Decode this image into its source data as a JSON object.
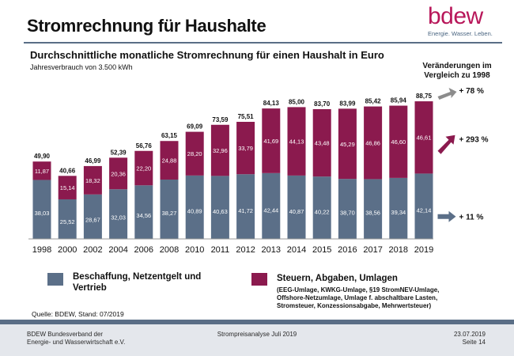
{
  "header": {
    "title": "Stromrechnung für Haushalte",
    "logo_word": "bdew",
    "logo_tagline": "Energie. Wasser. Leben."
  },
  "chart_data": {
    "type": "bar",
    "stacked": true,
    "title": "Durchschnittliche monatliche Stromrechnung für einen Haushalt in Euro",
    "subtitle": "Jahresverbrauch von 3.500 kWh",
    "categories": [
      "1998",
      "2000",
      "2002",
      "2004",
      "2006",
      "2008",
      "2010",
      "2011",
      "2012",
      "2013",
      "2014",
      "2015",
      "2016",
      "2017",
      "2018",
      "2019"
    ],
    "series": [
      {
        "name": "Beschaffung, Netzentgelt und Vertrieb",
        "color": "#5b6f88",
        "values": [
          38.03,
          25.52,
          28.67,
          32.03,
          34.56,
          38.27,
          40.89,
          40.63,
          41.72,
          42.44,
          40.87,
          40.22,
          38.7,
          38.56,
          39.34,
          42.14
        ],
        "labels": [
          "38,03",
          "25,52",
          "28,67",
          "32,03",
          "34,56",
          "38,27",
          "40,89",
          "40,63",
          "41,72",
          "42,44",
          "40,87",
          "40,22",
          "38,70",
          "38,56",
          "39,34",
          "42,14"
        ]
      },
      {
        "name": "Steuern, Abgaben, Umlagen",
        "color": "#8b1a4e",
        "values": [
          11.87,
          15.14,
          18.32,
          20.36,
          22.2,
          24.88,
          28.2,
          32.96,
          33.79,
          41.69,
          44.13,
          43.48,
          45.29,
          46.86,
          46.6,
          46.61
        ],
        "labels": [
          "11,87",
          "15,14",
          "18,32",
          "20,36",
          "22,20",
          "24,88",
          "28,20",
          "32,96",
          "33,79",
          "41,69",
          "44,13",
          "43,48",
          "45,29",
          "46,86",
          "46,60",
          "46,61"
        ]
      }
    ],
    "totals": [
      49.9,
      40.66,
      46.99,
      52.39,
      56.76,
      63.15,
      69.09,
      73.59,
      75.51,
      84.13,
      85.0,
      83.7,
      83.99,
      85.42,
      85.94,
      88.75
    ],
    "total_labels": [
      "49,90",
      "40,66",
      "46,99",
      "52,39",
      "56,76",
      "63,15",
      "69,09",
      "73,59",
      "75,51",
      "84,13",
      "85,00",
      "83,70",
      "83,99",
      "85,42",
      "85,94",
      "88,75"
    ],
    "ylim": [
      0,
      100
    ],
    "changes_title": "Veränderungen im Vergleich zu 1998",
    "changes": [
      {
        "series": "total",
        "label": "+ 78 %",
        "color": "#8c8c8c"
      },
      {
        "series": "Steuern, Abgaben, Umlagen",
        "label": "+ 293 %",
        "color": "#8b1a4e"
      },
      {
        "series": "Beschaffung, Netzentgelt und Vertrieb",
        "label": "+ 11 %",
        "color": "#5b6f88"
      }
    ]
  },
  "legend": {
    "item1": "Beschaffung, Netzentgelt und Vertrieb",
    "item2": "Steuern, Abgaben, Umlagen",
    "item2_detail": "(EEG-Umlage, KWKG-Umlage, §19 StromNEV-Umlage, Offshore-Netzumlage, Umlage f. abschaltbare Lasten, Stromsteuer, Konzessionsabgabe, Mehrwertsteuer)",
    "detail_lines": [
      "(EEG-Umlage, KWKG-Umlage, §19 StromNEV-Umlage,",
      "Offshore-Netzumlage, Umlage f. abschaltbare Lasten,",
      "Stromsteuer, Konzessionsabgabe, Mehrwertsteuer)"
    ]
  },
  "source": "Quelle: BDEW, Stand: 07/2019",
  "footer": {
    "org_line1": "BDEW Bundesverband der",
    "org_line2": "Energie- und Wasserwirtschaft e.V.",
    "center": "Strompreisanalyse Juli 2019",
    "date": "23.07.2019",
    "page": "Seite 14"
  }
}
